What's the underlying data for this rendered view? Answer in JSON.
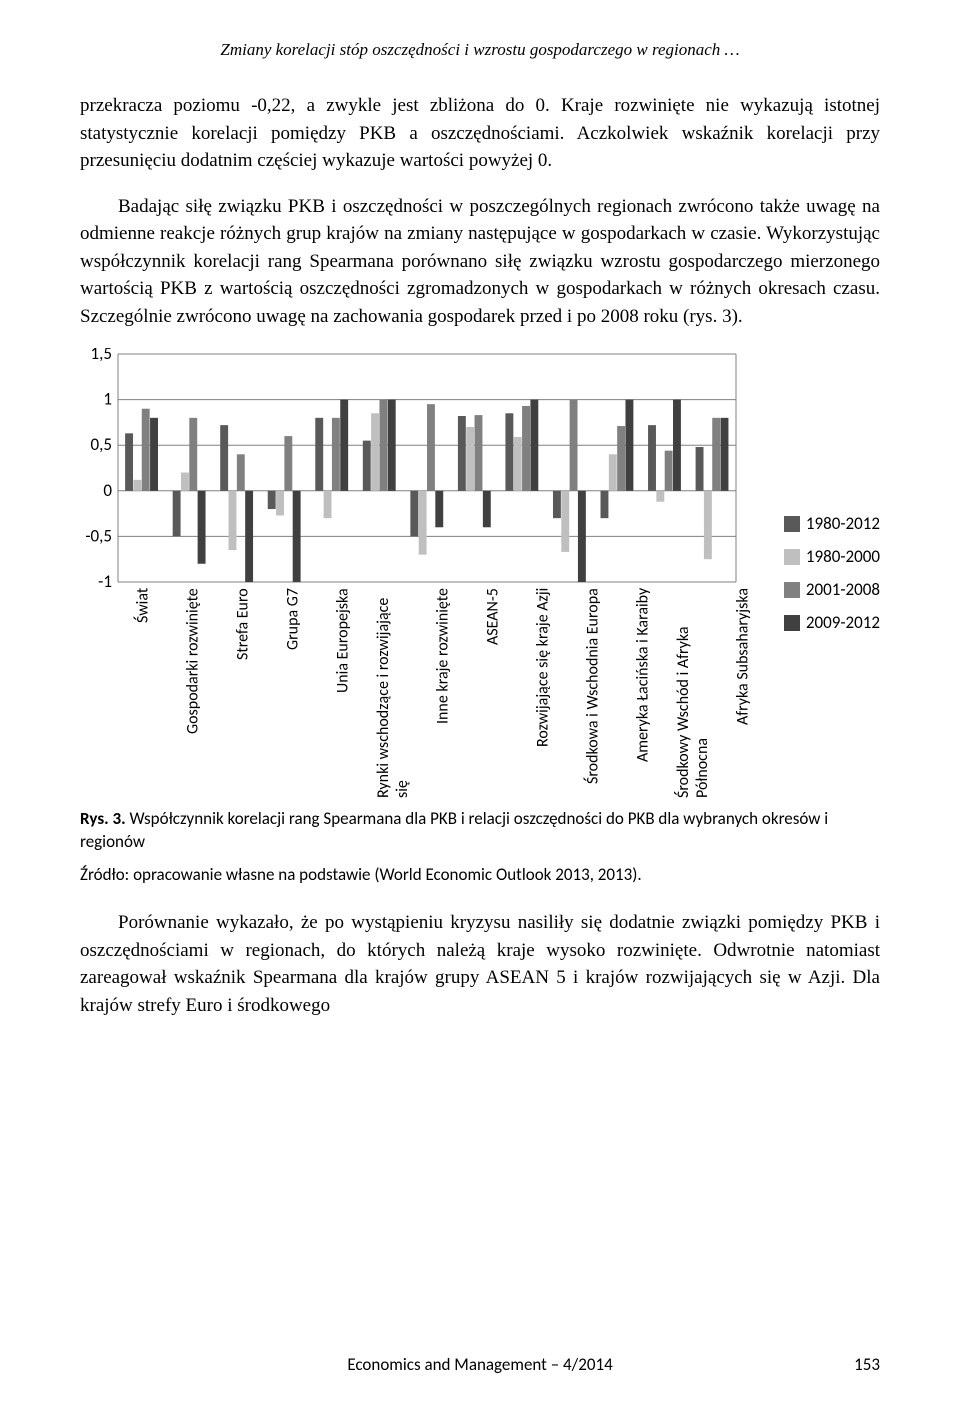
{
  "header": {
    "title": "Zmiany korelacji stóp oszczędności i wzrostu gospodarczego w regionach …"
  },
  "paragraphs": {
    "p1": "przekracza poziomu -0,22, a zwykle jest zbliżona do 0. Kraje rozwinięte nie wykazują istotnej statystycznie korelacji pomiędzy PKB a oszczędnościami. Aczkolwiek wskaźnik korelacji przy przesunięciu dodatnim częściej wykazuje wartości powyżej 0.",
    "p2": "Badając siłę związku PKB i oszczędności w poszczególnych regionach zwrócono także uwagę na odmienne reakcje różnych grup krajów na zmiany następujące w gospodarkach w czasie. Wykorzystując współczynnik korelacji rang Spearmana porównano siłę związku wzrostu gospodarczego mierzonego wartością PKB z wartością oszczędności zgromadzonych w gospodarkach w różnych okresach czasu. Szczególnie zwrócono uwagę na zachowania gospodarek przed i po 2008 roku (rys. 3).",
    "p3": "Porównanie wykazało, że po wystąpieniu kryzysu nasiliły się dodatnie związki pomiędzy PKB i oszczędnościami w regionach, do których należą kraje wysoko rozwinięte. Odwrotnie natomiast zareagował wskaźnik Spearmana dla krajów grupy ASEAN 5 i krajów rozwijających się w Azji. Dla krajów strefy Euro i środkowego"
  },
  "chart": {
    "type": "bar",
    "ylim": [
      -1,
      1.5
    ],
    "yticks": [
      -1,
      -0.5,
      0,
      0.5,
      1,
      1.5
    ],
    "ytick_labels": [
      "-1",
      "-0,5",
      "0",
      "0,5",
      "1",
      "1,5"
    ],
    "categories": [
      "Świat",
      "Gospodarki rozwinięte",
      "Strefa Euro",
      "Grupa G7",
      "Unia Europejska",
      "Rynki wschodzące i rozwijające się",
      "Inne kraje rozwinięte",
      "ASEAN-5",
      "Rozwijające się kraje Azji",
      "Środkowa i Wschodnia Europa",
      "Ameryka Łacińska i Karaiby",
      "Środkowy Wschód i Afryka Północna",
      "Afryka Subsaharyjska"
    ],
    "series": [
      {
        "name": "1980-2012",
        "color": "#595959",
        "values": [
          0.63,
          -0.5,
          0.72,
          -0.2,
          0.8,
          0.55,
          -0.5,
          0.82,
          0.85,
          -0.3,
          -0.3,
          0.72,
          0.48
        ]
      },
      {
        "name": "1980-2000",
        "color": "#bfbfbf",
        "values": [
          0.12,
          0.2,
          -0.65,
          -0.27,
          -0.3,
          0.85,
          -0.7,
          0.7,
          0.59,
          -0.67,
          0.4,
          -0.12,
          -0.75
        ]
      },
      {
        "name": "2001-2008",
        "color": "#808080",
        "values": [
          0.9,
          0.8,
          0.4,
          0.6,
          0.8,
          1.0,
          0.95,
          0.83,
          0.93,
          1.0,
          0.71,
          0.44,
          0.8
        ]
      },
      {
        "name": "2009-2012",
        "color": "#404040",
        "values": [
          0.8,
          -0.8,
          -1.0,
          -1.0,
          1.0,
          1.0,
          -0.4,
          -0.4,
          1.0,
          -1.0,
          1.0,
          1.0,
          0.8
        ]
      }
    ],
    "background_color": "#ffffff",
    "grid_color": "#808080",
    "group_gap_ratio": 0.3,
    "title_fontsize": 0,
    "label_fontsize": 16,
    "axis_fontsize": 17
  },
  "caption": {
    "label": "Rys. 3.",
    "text": " Współczynnik korelacji rang Spearmana dla PKB i relacji oszczędności do PKB dla wybranych okresów i regionów"
  },
  "source": {
    "text": "Źródło: opracowanie własne na podstawie (World Economic Outlook 2013, 2013)."
  },
  "footer": {
    "journal": "Economics and Management – 4/2014",
    "page": "153"
  }
}
